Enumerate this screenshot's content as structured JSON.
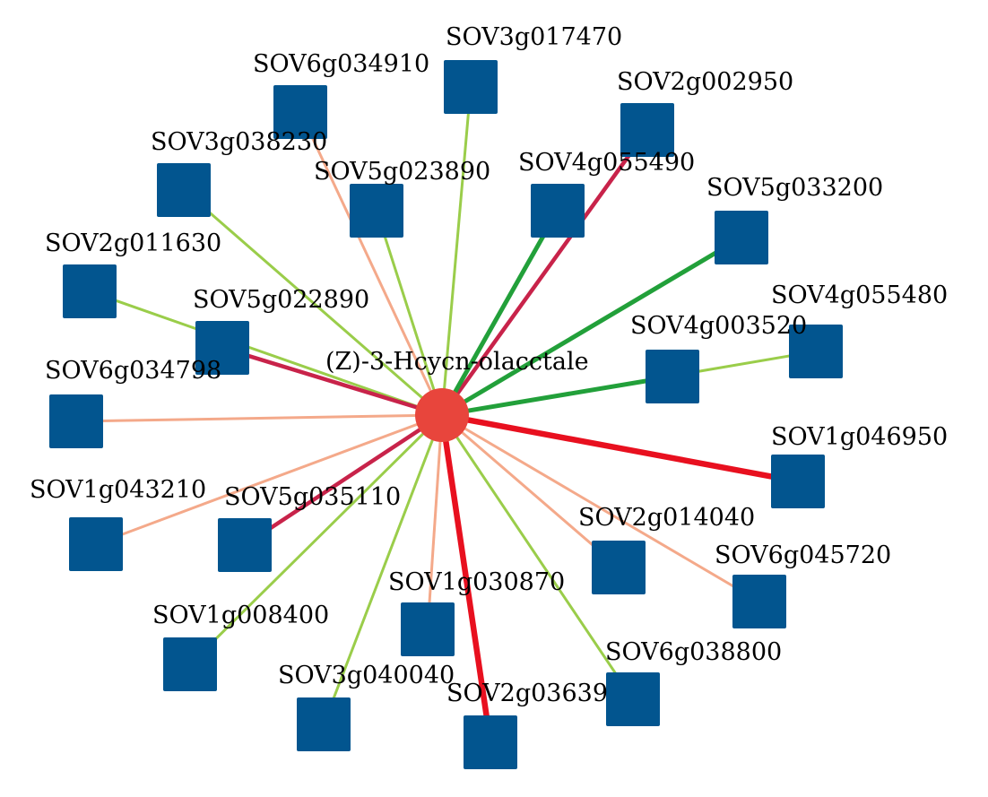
{
  "center": {
    "label": "(Z)-3-Hcycn-olacctale",
    "color": "#e8453c"
  },
  "node_color": "#02558f",
  "edge_colors": {
    "light-green": "#9acd4a",
    "green": "#22a03a",
    "crimson": "#c8234a",
    "red": "#e8101f",
    "salmon": "#f4a98a"
  },
  "nodes": [
    {
      "label": "SOV3g017470",
      "edge": "light-green"
    },
    {
      "label": "SOV6g034910",
      "edge": "salmon"
    },
    {
      "label": "SOV2g002950",
      "edge": "crimson"
    },
    {
      "label": "SOV3g038230",
      "edge": "light-green"
    },
    {
      "label": "SOV5g023890",
      "edge": "light-green"
    },
    {
      "label": "SOV4g055490",
      "edge": "green"
    },
    {
      "label": "SOV5g033200",
      "edge": "green"
    },
    {
      "label": "SOV2g011630",
      "edge": "light-green"
    },
    {
      "label": "SOV5g022890",
      "edge": "crimson"
    },
    {
      "label": "SOV4g055480",
      "edge": "light-green"
    },
    {
      "label": "SOV4g003520",
      "edge": "green"
    },
    {
      "label": "SOV6g034798",
      "edge": "salmon"
    },
    {
      "label": "SOV1g046950",
      "edge": "red"
    },
    {
      "label": "SOV1g043210",
      "edge": "salmon"
    },
    {
      "label": "SOV5g035110",
      "edge": "crimson"
    },
    {
      "label": "SOV2g014040",
      "edge": "salmon"
    },
    {
      "label": "SOV6g045720",
      "edge": "salmon"
    },
    {
      "label": "SOV1g030870",
      "edge": "salmon"
    },
    {
      "label": "SOV1g008400",
      "edge": "light-green"
    },
    {
      "label": "SOV6g038800",
      "edge": "light-green"
    },
    {
      "label": "SOV3g040040",
      "edge": "light-green"
    },
    {
      "label": "SOV2g03639",
      "edge": "red"
    }
  ]
}
